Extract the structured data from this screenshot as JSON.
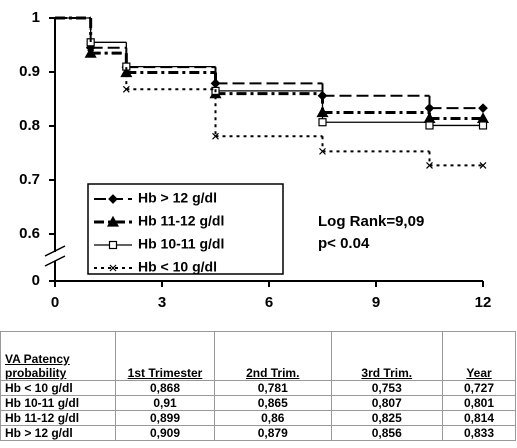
{
  "chart_data": {
    "type": "step",
    "xlim": [
      0,
      12
    ],
    "xticks": [
      0,
      3,
      6,
      9,
      12
    ],
    "ylim": [
      0,
      1
    ],
    "yticks": [
      0,
      0.6,
      0.7,
      0.8,
      0.9,
      1
    ],
    "axis_break": true,
    "x": [
      0,
      1,
      2,
      4.5,
      7.5,
      10.5,
      12
    ],
    "series": [
      {
        "name": "Hb > 12 g/dl",
        "color": "#000000",
        "marker": "diamond",
        "dash": "long",
        "values": [
          1,
          0.945,
          0.909,
          0.879,
          0.856,
          0.833,
          0.833
        ]
      },
      {
        "name": "Hb 11-12 g/dl",
        "color": "#000000",
        "marker": "triangle",
        "dash": "dashdot",
        "values": [
          1,
          0.935,
          0.899,
          0.86,
          0.825,
          0.814,
          0.814
        ]
      },
      {
        "name": "Hb 10-11 g/dl",
        "color": "#000000",
        "marker": "square",
        "dash": "solid",
        "values": [
          1,
          0.955,
          0.91,
          0.865,
          0.807,
          0.801,
          0.801
        ]
      },
      {
        "name": "Hb < 10 g/dl",
        "color": "#000000",
        "marker": "x",
        "dash": "dotted",
        "values": [
          1,
          0.935,
          0.868,
          0.781,
          0.753,
          0.727,
          0.727
        ]
      }
    ],
    "annotations": [
      "Log Rank=9,09",
      "p< 0.04"
    ]
  },
  "table": {
    "header": [
      "VA Patency probability",
      "1st Trimester",
      "2nd Trim.",
      "3rd Trim.",
      "Year"
    ],
    "rows": [
      [
        "Hb < 10 g/dl",
        "0,868",
        "0,781",
        "0,753",
        "0,727"
      ],
      [
        "Hb 10-11 g/dl",
        "0,91",
        "0,865",
        "0,807",
        "0,801"
      ],
      [
        "Hb 11-12 g/dl",
        "0,899",
        "0,86",
        "0,825",
        "0,814"
      ],
      [
        "Hb > 12 g/dl",
        "0,909",
        "0,879",
        "0,856",
        "0,833"
      ]
    ]
  }
}
